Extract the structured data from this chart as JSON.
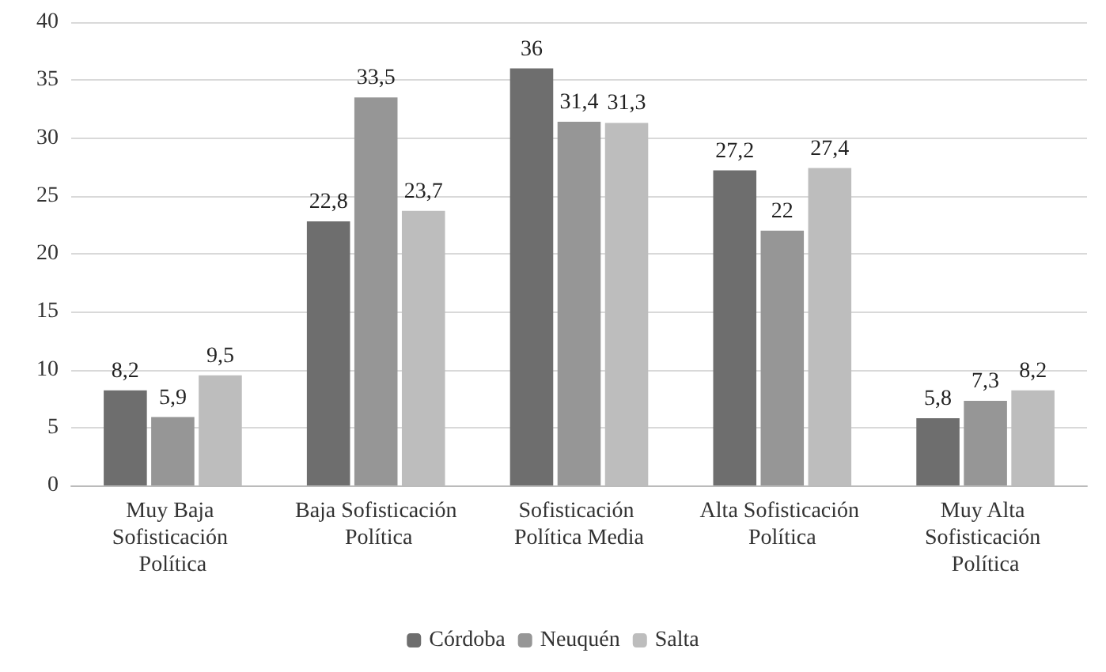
{
  "chart_data": {
    "type": "bar",
    "categories": [
      "Muy Baja Sofisticación Política",
      "Baja Sofisticación Política",
      "Sofisticación Política Media",
      "Alta Sofisticación Política",
      "Muy Alta Sofisticación Política"
    ],
    "series": [
      {
        "name": "Córdoba",
        "color": "#6e6e6e",
        "values": [
          8.2,
          22.8,
          36,
          27.2,
          5.8
        ],
        "value_labels": [
          "8,2",
          "22,8",
          "36",
          "27,2",
          "5,8"
        ]
      },
      {
        "name": "Neuquén",
        "color": "#969696",
        "values": [
          5.9,
          33.5,
          31.4,
          22,
          7.3
        ],
        "value_labels": [
          "5,9",
          "33,5",
          "31,4",
          "22",
          "7,3"
        ]
      },
      {
        "name": "Salta",
        "color": "#bdbdbd",
        "values": [
          9.5,
          23.7,
          31.3,
          27.4,
          8.2
        ],
        "value_labels": [
          "9,5",
          "23,7",
          "31,3",
          "27,4",
          "8,2"
        ]
      }
    ],
    "ylim": [
      0,
      40
    ],
    "yticks": [
      0,
      5,
      10,
      15,
      20,
      25,
      30,
      35,
      40
    ],
    "grid": "y",
    "legend": "bottom"
  }
}
